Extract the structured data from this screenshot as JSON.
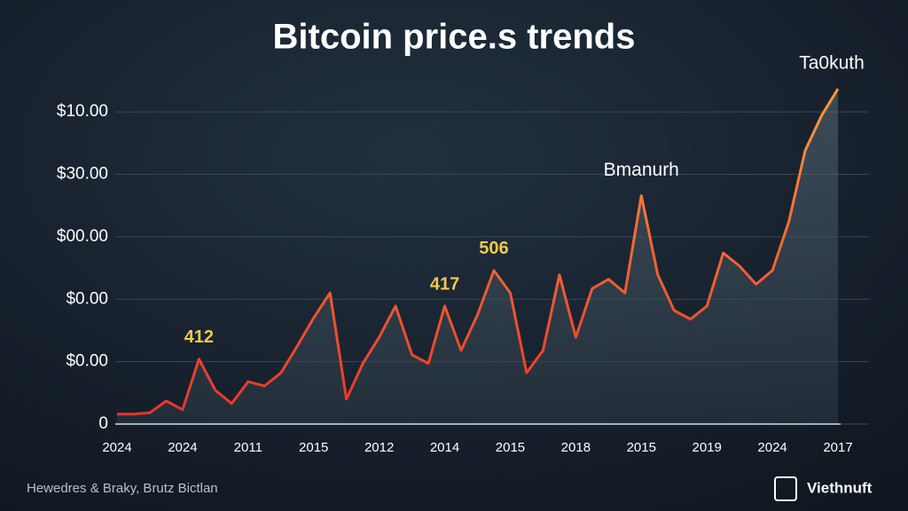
{
  "chart_data": {
    "type": "line",
    "title": "Bitcoin price.s trends",
    "categories": [
      "2024",
      null,
      null,
      null,
      "2024",
      null,
      null,
      null,
      "2011",
      null,
      null,
      null,
      "2015",
      null,
      null,
      null,
      "2012",
      null,
      null,
      null,
      "2014",
      null,
      null,
      null,
      "2015",
      null,
      null,
      null,
      "2018",
      null,
      null,
      null,
      "2015",
      null,
      null,
      null,
      "2019",
      null,
      null,
      null,
      "2024",
      null,
      null,
      null,
      "2017"
    ],
    "values": [
      0.16,
      0.16,
      0.18,
      0.37,
      0.23,
      1.04,
      0.54,
      0.33,
      0.68,
      0.61,
      0.82,
      1.25,
      1.7,
      2.1,
      0.4,
      0.97,
      1.39,
      1.89,
      1.11,
      0.97,
      1.89,
      1.18,
      1.75,
      2.46,
      2.1,
      0.82,
      1.18,
      2.39,
      1.39,
      2.17,
      2.32,
      2.1,
      3.66,
      2.39,
      1.82,
      1.68,
      1.89,
      2.74,
      2.53,
      2.24,
      2.46,
      3.24,
      4.38,
      4.94,
      5.37
    ],
    "color": "#f26a2e",
    "ylim": [
      0,
      5.5
    ],
    "yticks": [
      0,
      {
        "value": 1,
        "label": "$0.00"
      },
      {
        "value": 2,
        "label": "$0.00"
      },
      {
        "value": 3,
        "label": "$00.00"
      },
      {
        "value": 4,
        "label": "$30.00"
      },
      {
        "value": 5,
        "label": "$10.00"
      }
    ],
    "grid": true,
    "annotations": [
      {
        "text": "412",
        "index": 5
      },
      {
        "text": "417",
        "index": 20
      },
      {
        "text": "506",
        "index": 23
      },
      {
        "text": "Bmanurh",
        "index": 32
      },
      {
        "text": "Ta0kuth",
        "index": 44
      }
    ],
    "source": "Hewedres & Braky, Brutz Bictlan",
    "logo": "Viethnuft"
  }
}
